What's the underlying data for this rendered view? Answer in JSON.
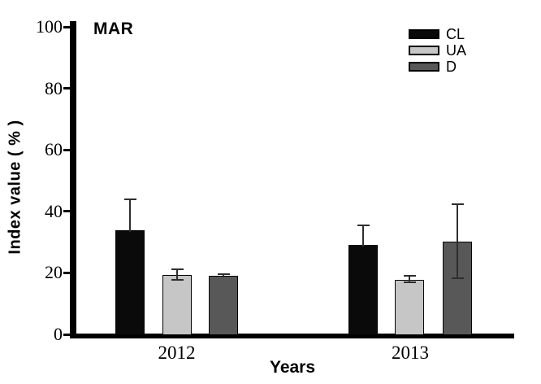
{
  "figure": {
    "panel_label": "MAR"
  },
  "chart_data": {
    "type": "bar",
    "title": "MAR",
    "xlabel": "Years",
    "ylabel": "Index value ( % )",
    "categories": [
      "2012",
      "2013"
    ],
    "y_ticks": [
      0,
      20,
      40,
      60,
      80,
      100
    ],
    "ylim": [
      0,
      100
    ],
    "grid": false,
    "legend_position": "top-right",
    "error_bars": "sd",
    "series": [
      {
        "name": "CL",
        "color": "#0a0a0a",
        "values": [
          33.9,
          29.2
        ],
        "err_up": [
          10.3,
          6.5
        ],
        "err_down": [
          0,
          0
        ]
      },
      {
        "name": "UA",
        "color": "#c6c6c6",
        "values": [
          19.3,
          17.8
        ],
        "err_up": [
          2.1,
          1.6
        ],
        "err_down": [
          1.8,
          1.2
        ]
      },
      {
        "name": "D",
        "color": "#585858",
        "values": [
          19.1,
          30.2
        ],
        "err_up": [
          0.7,
          12.4
        ],
        "err_down": [
          0,
          12.2
        ]
      }
    ]
  }
}
